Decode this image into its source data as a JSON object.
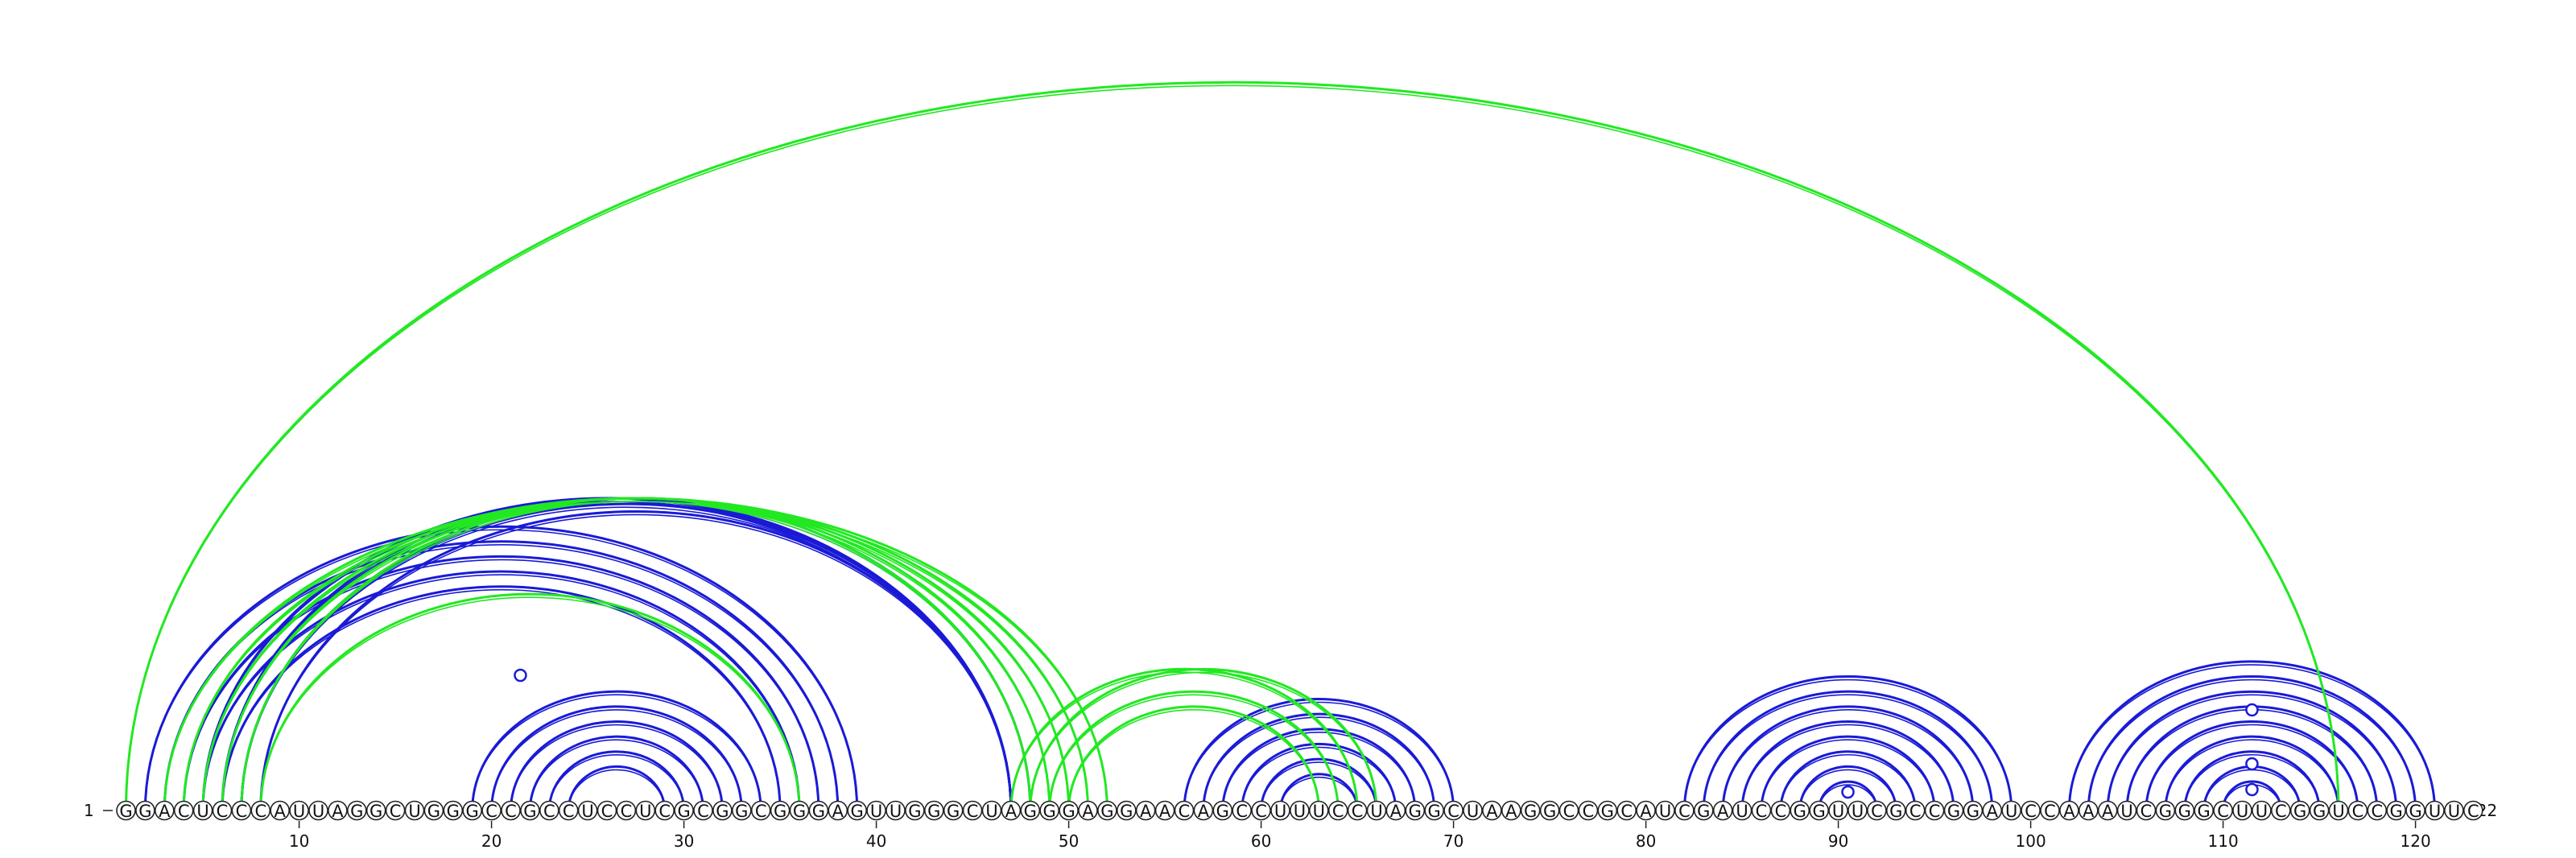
{
  "sequence": "GGACUCCCAUUAGGCUGGGCCGCCUCCUCGCGGCGGGAGUUGGGCUAGGGAGGAACAGCCUUUCCUAGGCUAAGGCCGCAUCGAUCCGGUUCGCCGGAUCCAAAUCGGGCUUCGGUCCGGUUC",
  "start_label": "1",
  "end_label": "122",
  "ticks": [
    10,
    20,
    30,
    40,
    50,
    60,
    70,
    80,
    90,
    100,
    110,
    120
  ],
  "colors": {
    "secondary": "#1a1ad6",
    "tertiary": "#22e822"
  },
  "arcs": [
    {
      "i": 2,
      "j": 39,
      "type": "secondary"
    },
    {
      "i": 3,
      "j": 38,
      "type": "secondary"
    },
    {
      "i": 4,
      "j": 37,
      "type": "secondary"
    },
    {
      "i": 5,
      "j": 36,
      "type": "secondary"
    },
    {
      "i": 6,
      "j": 35,
      "type": "secondary"
    },
    {
      "i": 5,
      "j": 47,
      "type": "secondary"
    },
    {
      "i": 6,
      "j": 47,
      "type": "secondary"
    },
    {
      "i": 7,
      "j": 47,
      "type": "secondary"
    },
    {
      "i": 8,
      "j": 47,
      "type": "secondary"
    },
    {
      "i": 7,
      "j": 48,
      "type": "secondary"
    },
    {
      "i": 19,
      "j": 34,
      "type": "secondary"
    },
    {
      "i": 20,
      "j": 33,
      "type": "secondary"
    },
    {
      "i": 21,
      "j": 32,
      "type": "secondary"
    },
    {
      "i": 22,
      "j": 31,
      "type": "secondary"
    },
    {
      "i": 23,
      "j": 30,
      "type": "secondary"
    },
    {
      "i": 24,
      "j": 29,
      "type": "secondary"
    },
    {
      "i": 56,
      "j": 70,
      "type": "secondary"
    },
    {
      "i": 57,
      "j": 69,
      "type": "secondary"
    },
    {
      "i": 58,
      "j": 68,
      "type": "secondary"
    },
    {
      "i": 59,
      "j": 67,
      "type": "secondary"
    },
    {
      "i": 60,
      "j": 66,
      "type": "secondary"
    },
    {
      "i": 61,
      "j": 65,
      "type": "secondary"
    },
    {
      "i": 82,
      "j": 99,
      "type": "secondary"
    },
    {
      "i": 83,
      "j": 98,
      "type": "secondary"
    },
    {
      "i": 84,
      "j": 97,
      "type": "secondary"
    },
    {
      "i": 85,
      "j": 96,
      "type": "secondary"
    },
    {
      "i": 86,
      "j": 95,
      "type": "secondary"
    },
    {
      "i": 87,
      "j": 94,
      "type": "secondary"
    },
    {
      "i": 88,
      "j": 93,
      "type": "secondary"
    },
    {
      "i": 89,
      "j": 92,
      "type": "secondary"
    },
    {
      "i": 102,
      "j": 121,
      "type": "secondary"
    },
    {
      "i": 103,
      "j": 120,
      "type": "secondary"
    },
    {
      "i": 104,
      "j": 119,
      "type": "secondary"
    },
    {
      "i": 105,
      "j": 118,
      "type": "secondary"
    },
    {
      "i": 106,
      "j": 117,
      "type": "secondary"
    },
    {
      "i": 107,
      "j": 116,
      "type": "secondary"
    },
    {
      "i": 108,
      "j": 115,
      "type": "secondary"
    },
    {
      "i": 109,
      "j": 114,
      "type": "secondary"
    },
    {
      "i": 110,
      "j": 113,
      "type": "secondary"
    },
    {
      "i": 1,
      "j": 116,
      "type": "tertiary"
    },
    {
      "i": 3,
      "j": 52,
      "type": "tertiary"
    },
    {
      "i": 4,
      "j": 51,
      "type": "tertiary"
    },
    {
      "i": 5,
      "j": 50,
      "type": "tertiary"
    },
    {
      "i": 6,
      "j": 49,
      "type": "tertiary"
    },
    {
      "i": 7,
      "j": 48,
      "type": "tertiary"
    },
    {
      "i": 8,
      "j": 36,
      "type": "tertiary"
    },
    {
      "i": 47,
      "j": 65,
      "type": "tertiary"
    },
    {
      "i": 48,
      "j": 66,
      "type": "tertiary"
    },
    {
      "i": 49,
      "j": 64,
      "type": "tertiary"
    },
    {
      "i": 50,
      "j": 63,
      "type": "tertiary"
    }
  ],
  "markers": [
    {
      "pos": 21.5,
      "h": 168,
      "type": "secondary"
    },
    {
      "pos": 90.5,
      "h": 23,
      "type": "secondary"
    },
    {
      "pos": 111.5,
      "h": 26,
      "type": "secondary"
    },
    {
      "pos": 111.5,
      "h": 58,
      "type": "secondary"
    },
    {
      "pos": 111.5,
      "h": 125,
      "type": "secondary"
    }
  ]
}
